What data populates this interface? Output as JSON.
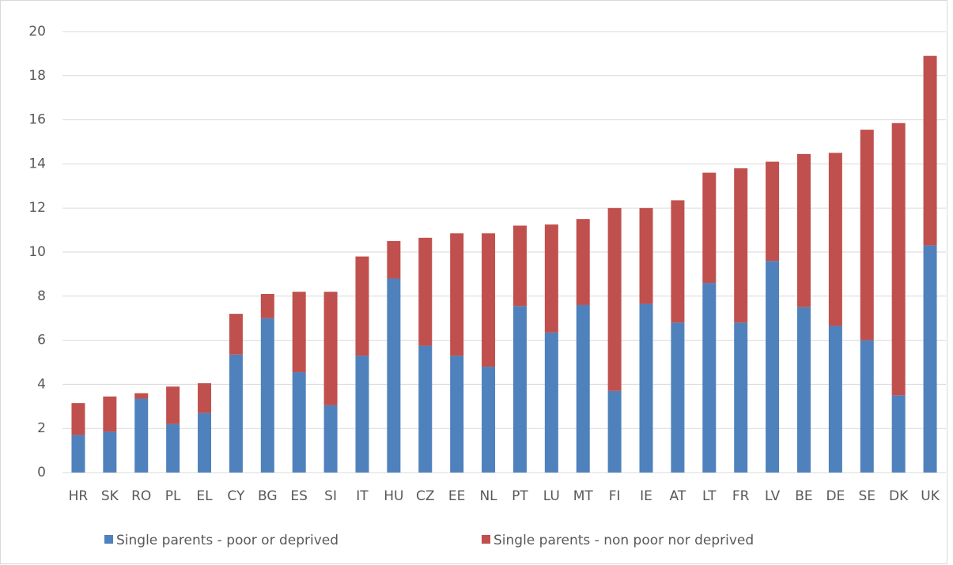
{
  "chart_data": {
    "type": "stacked_bar",
    "categories": [
      "HR",
      "SK",
      "RO",
      "PL",
      "EL",
      "CY",
      "BG",
      "ES",
      "SI",
      "IT",
      "HU",
      "CZ",
      "EE",
      "NL",
      "PT",
      "LU",
      "MT",
      "FI",
      "IE",
      "AT",
      "LT",
      "FR",
      "LV",
      "BE",
      "DE",
      "SE",
      "DK",
      "UK"
    ],
    "series": [
      {
        "name": "Single parents - poor or deprived",
        "color": "#4f81bd",
        "values": [
          1.7,
          1.85,
          3.35,
          2.2,
          2.7,
          5.35,
          7.0,
          4.55,
          3.05,
          5.3,
          8.8,
          5.75,
          5.3,
          4.8,
          7.55,
          6.35,
          7.6,
          3.7,
          7.65,
          6.8,
          8.6,
          6.8,
          9.6,
          7.5,
          6.65,
          6.0,
          3.5,
          10.3
        ]
      },
      {
        "name": "Single parents - non poor nor deprived",
        "color": "#c0504d",
        "values": [
          1.45,
          1.6,
          0.25,
          1.7,
          1.35,
          1.85,
          1.1,
          3.65,
          5.15,
          4.5,
          1.7,
          4.9,
          5.55,
          6.05,
          3.65,
          4.9,
          3.9,
          8.3,
          4.35,
          5.55,
          5.0,
          7.0,
          4.5,
          6.95,
          7.85,
          9.55,
          12.35,
          8.6
        ]
      }
    ],
    "ylim": [
      0,
      20
    ],
    "yticks": [
      0,
      2,
      4,
      6,
      8,
      10,
      12,
      14,
      16,
      18,
      20
    ],
    "grid": true,
    "legend": "bottom"
  }
}
